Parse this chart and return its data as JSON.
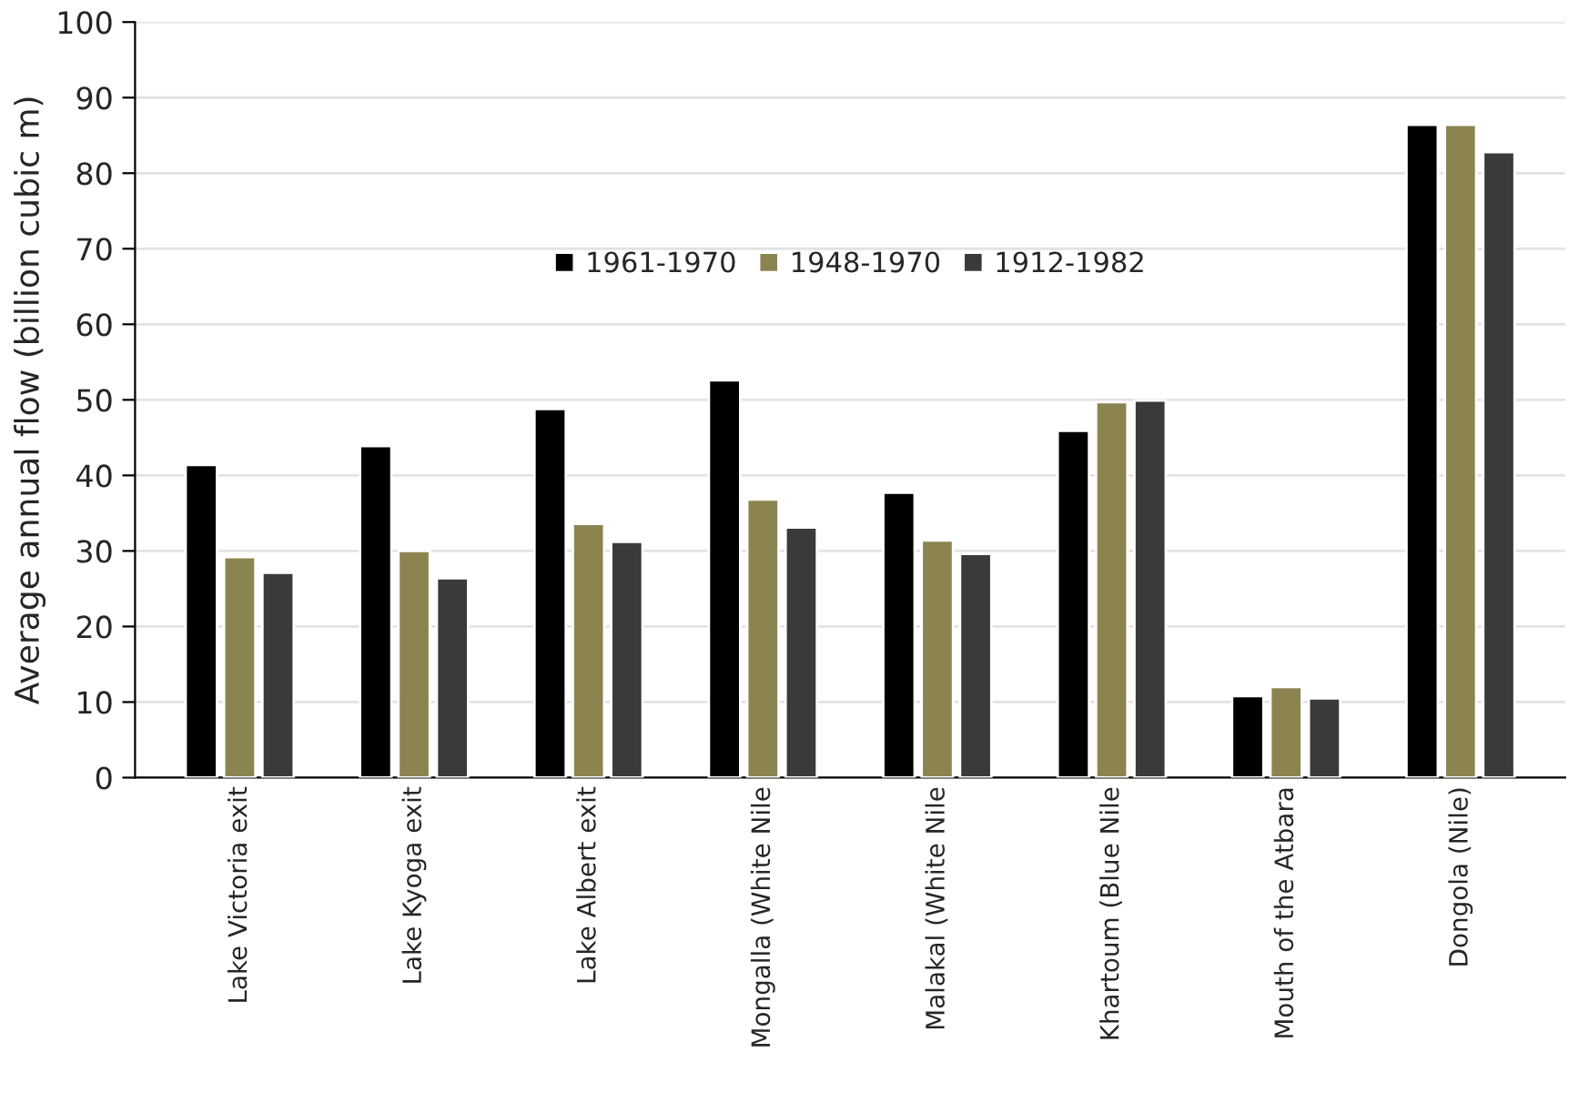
{
  "chart_data": {
    "type": "bar",
    "ylabel": "Average annual flow (billion cubic m)",
    "categories": [
      "Lake Victoria exit",
      "Lake Kyoga exit",
      "Lake Albert exit",
      "Mongalla (White Nile",
      "Malakal (White Nile",
      "Khartoum (Blue Nile",
      "Mouth of the Atbara",
      "Dongola (Nile)"
    ],
    "series": [
      {
        "name": "1961-1970",
        "color": "#000000",
        "values": [
          41.4,
          43.9,
          48.8,
          52.6,
          37.7,
          45.9,
          10.8,
          86.4
        ]
      },
      {
        "name": "1948-1970",
        "color": "#8c8450",
        "values": [
          29.2,
          30.0,
          33.6,
          36.8,
          31.4,
          49.7,
          12.0,
          86.4
        ]
      },
      {
        "name": "1912-1982",
        "color": "#3a3a3a",
        "values": [
          27.1,
          26.4,
          31.2,
          33.1,
          29.6,
          49.9,
          10.5,
          82.8
        ]
      }
    ],
    "ylim": [
      0,
      100
    ],
    "yticks": [
      0,
      10,
      20,
      30,
      40,
      50,
      60,
      70,
      80,
      90,
      100
    ],
    "grid": "y",
    "legend": "top"
  }
}
